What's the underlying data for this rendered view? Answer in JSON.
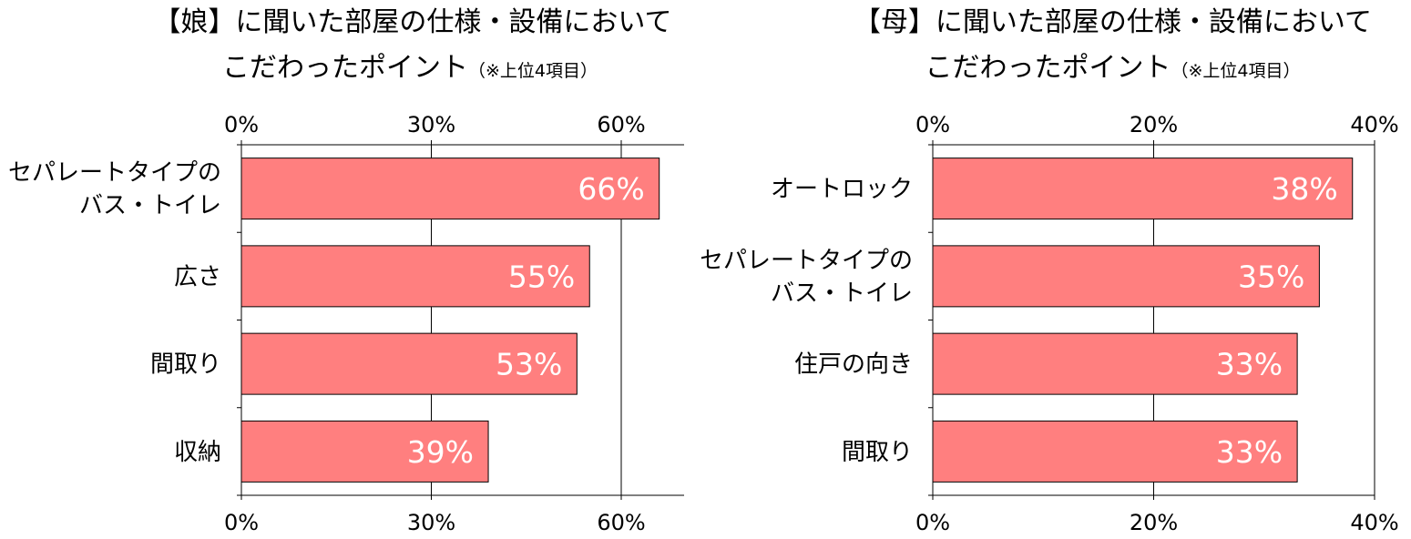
{
  "chart_data": [
    {
      "type": "bar",
      "orientation": "horizontal",
      "title_line1": "【娘】に聞いた部屋の仕様・設備において",
      "title_line2": "こだわったポイント",
      "title_note": "（※上位4項目）",
      "categories": [
        [
          "セパレートタイプの",
          "バス・トイレ"
        ],
        [
          "広さ"
        ],
        [
          "間取り"
        ],
        [
          "収納"
        ]
      ],
      "values": [
        66,
        55,
        53,
        39
      ],
      "value_labels": [
        "66%",
        "55%",
        "53%",
        "39%"
      ],
      "xlim": [
        0,
        70
      ],
      "ticks": [
        0,
        30,
        60
      ],
      "tick_labels": [
        "0%",
        "30%",
        "60%"
      ],
      "grid": true,
      "bar_color": "#ff7f7f"
    },
    {
      "type": "bar",
      "orientation": "horizontal",
      "title_line1": "【母】に聞いた部屋の仕様・設備において",
      "title_line2": "こだわったポイント",
      "title_note": "（※上位4項目）",
      "categories": [
        [
          "オートロック"
        ],
        [
          "セパレートタイプの",
          "バス・トイレ"
        ],
        [
          "住戸の向き"
        ],
        [
          "間取り"
        ]
      ],
      "values": [
        38,
        35,
        33,
        33
      ],
      "value_labels": [
        "38%",
        "35%",
        "33%",
        "33%"
      ],
      "xlim": [
        0,
        40
      ],
      "ticks": [
        0,
        20,
        40
      ],
      "tick_labels": [
        "0%",
        "20%",
        "40%"
      ],
      "grid": true,
      "bar_color": "#ff7f7f"
    }
  ]
}
